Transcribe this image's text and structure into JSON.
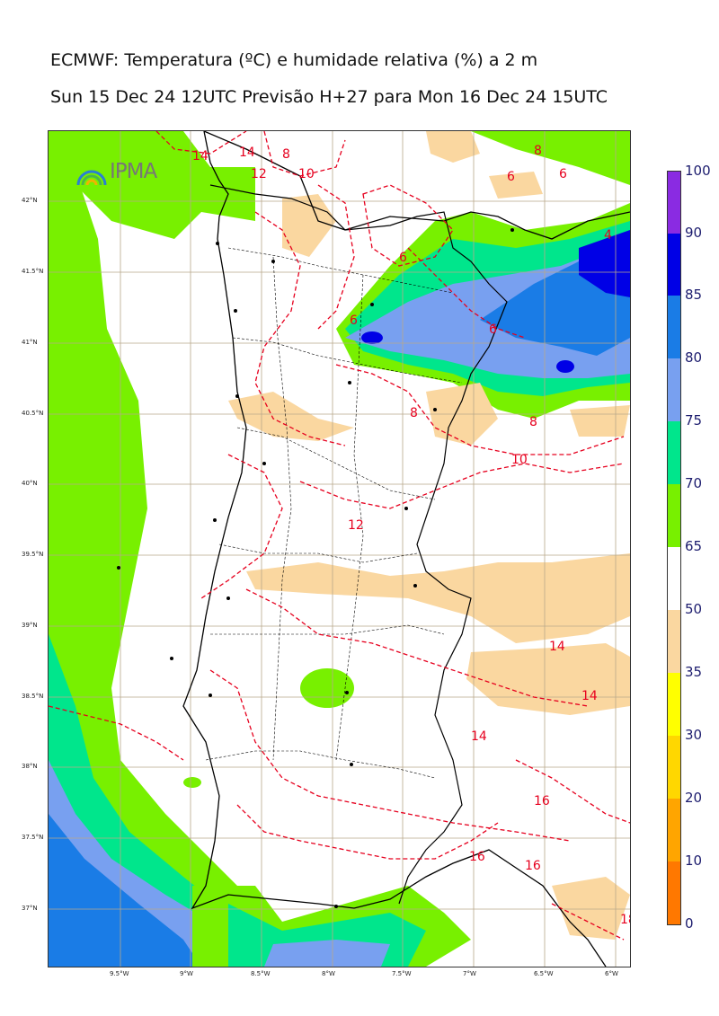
{
  "title_line1": "ECMWF: Temperatura (ºC) e humidade relativa (%) a 2 m",
  "title_line2": "Sun 15 Dec 24 12UTC Previsão H+27 para Mon 16 Dec 24 15UTC",
  "logo_text": "IPMA",
  "lat_labels": [
    "42°N",
    "41.5°N",
    "41°N",
    "40.5°N",
    "40°N",
    "39.5°N",
    "39°N",
    "38.5°N",
    "38°N",
    "37.5°N",
    "37°N"
  ],
  "lon_labels": [
    "9.5°W",
    "9°W",
    "8.5°W",
    "8°W",
    "7.5°W",
    "7°W",
    "6.5°W",
    "6°W"
  ],
  "colorbar": {
    "ticks": [
      "100",
      "90",
      "85",
      "80",
      "75",
      "70",
      "65",
      "50",
      "35",
      "30",
      "20",
      "10",
      "0"
    ],
    "colors": [
      "#8a2be2",
      "#0000e6",
      "#1a7ce6",
      "#78a0f0",
      "#00e68c",
      "#78f000",
      "#ffffff",
      "#fad7a0",
      "#ffff00",
      "#ffd700",
      "#ffa500",
      "#ff7800",
      "#ff4500"
    ]
  },
  "temperature_labels": [
    "14",
    "14",
    "12",
    "10",
    "8",
    "8",
    "6",
    "6",
    "6",
    "4",
    "6",
    "8",
    "8",
    "10",
    "12",
    "14",
    "14",
    "14",
    "16",
    "16",
    "16",
    "18",
    "6"
  ]
}
